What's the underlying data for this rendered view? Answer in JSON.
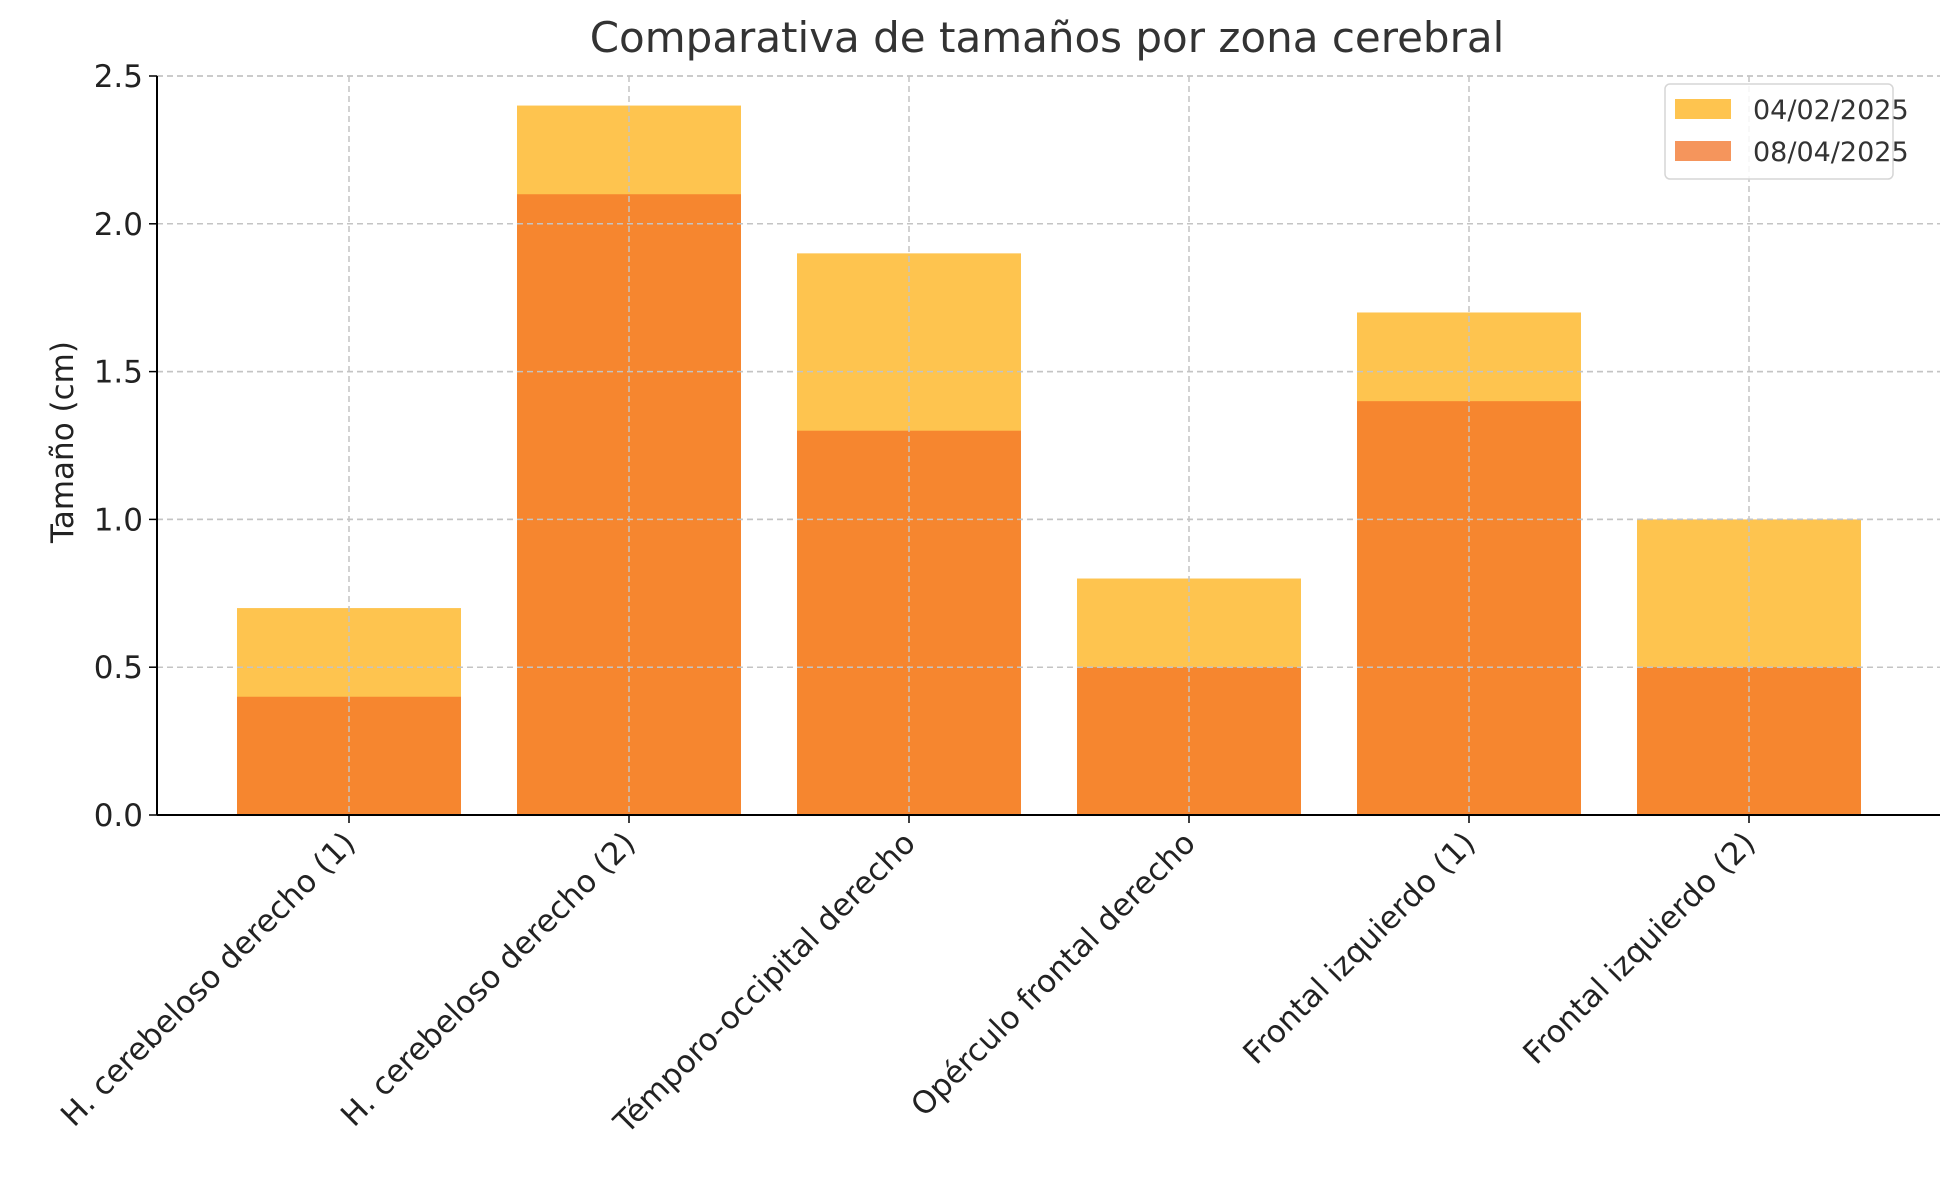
{
  "chart_data": {
    "type": "bar",
    "title": "Comparativa de tamaños por zona cerebral",
    "xlabel": "",
    "ylabel": "Tamaño (cm)",
    "ylim": [
      0,
      2.5
    ],
    "yticks": [
      "0.0",
      "0.5",
      "1.0",
      "1.5",
      "2.0",
      "2.5"
    ],
    "yticks_values": [
      0,
      0.5,
      1.0,
      1.5,
      2.0,
      2.5
    ],
    "grid": true,
    "legend_position": "top-right",
    "categories": [
      "H. cerebeloso derecho (1)",
      "H. cerebeloso derecho (2)",
      "Témporo-occipital derecho",
      "Opérculo frontal derecho",
      "Frontal izquierdo (1)",
      "Frontal izquierdo (2)"
    ],
    "series": [
      {
        "name": "04/02/2025",
        "color": "#fec44f",
        "legend_color": "#fec44f",
        "values": [
          0.7,
          2.4,
          1.9,
          0.8,
          1.7,
          1.0
        ]
      },
      {
        "name": "08/04/2025",
        "color": "#f6862f",
        "legend_color": "#f5955c",
        "values": [
          0.4,
          2.1,
          1.3,
          0.5,
          1.4,
          0.5
        ]
      }
    ]
  }
}
